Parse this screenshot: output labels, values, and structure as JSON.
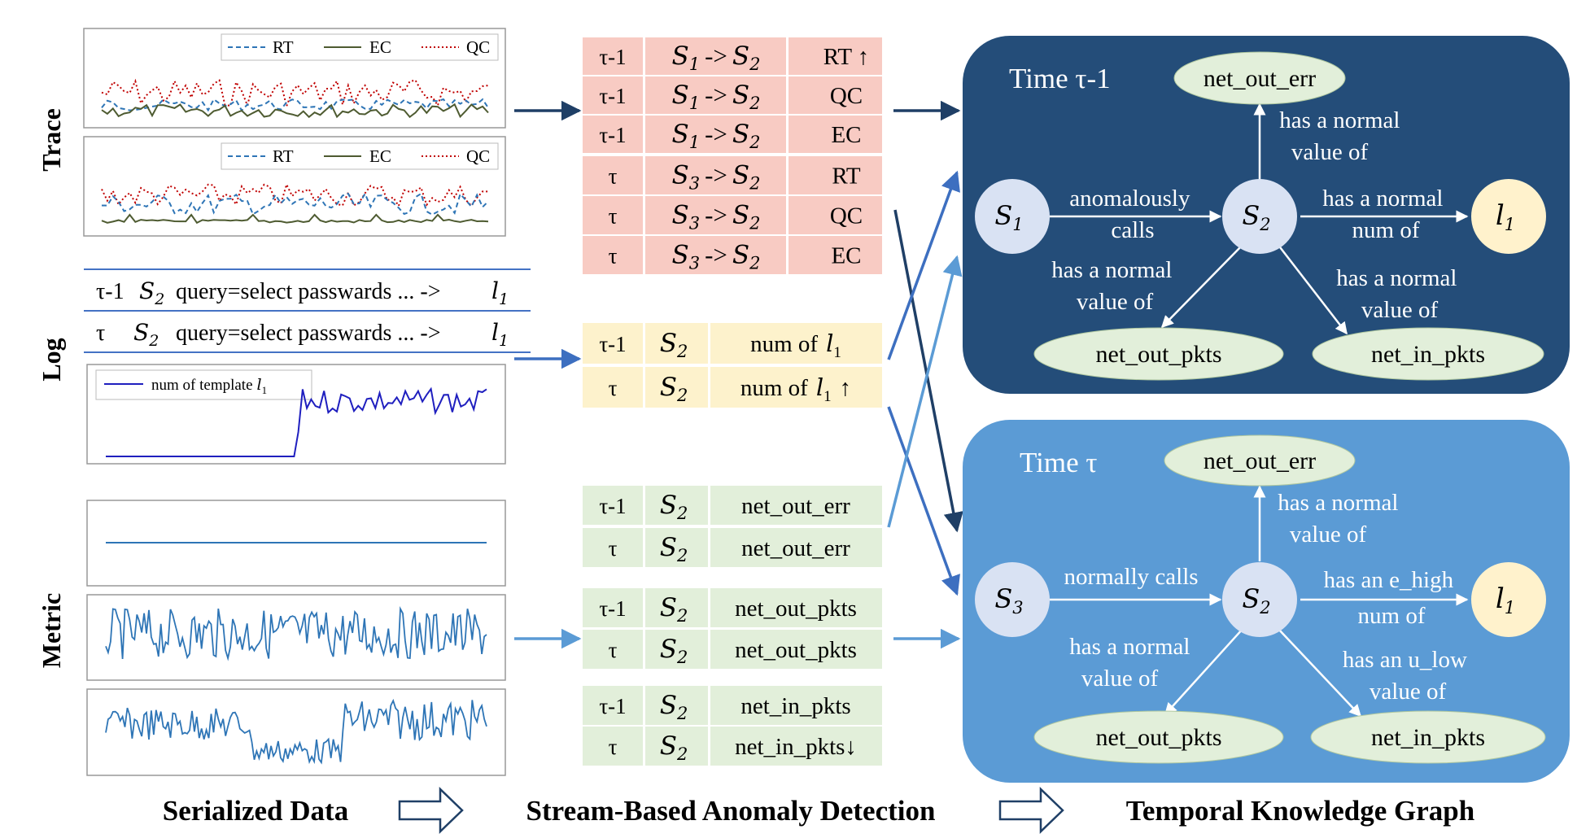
{
  "sections": {
    "trace": "Trace",
    "log": "Log",
    "metric": "Metric"
  },
  "legend": {
    "rt": "RT",
    "ec": "EC",
    "qc": "QC",
    "log_series": "num of template",
    "log_series_var": "l",
    "log_series_sub": "1"
  },
  "log_lines": [
    {
      "time": "τ-1",
      "svc": "S",
      "svc_sub": "2",
      "text": "query=select passwards ... ->",
      "tmpl": "l",
      "tmpl_sub": "1"
    },
    {
      "time": "τ",
      "svc": "S",
      "svc_sub": "2",
      "text": "query=select passwards ... ->",
      "tmpl": "l",
      "tmpl_sub": "1"
    }
  ],
  "trace_rows": [
    {
      "time": "τ-1",
      "from": "S",
      "from_sub": "1",
      "arrow": "->",
      "to": "S",
      "to_sub": "2",
      "metric": "RT ↑"
    },
    {
      "time": "τ-1",
      "from": "S",
      "from_sub": "1",
      "arrow": "->",
      "to": "S",
      "to_sub": "2",
      "metric": "QC"
    },
    {
      "time": "τ-1",
      "from": "S",
      "from_sub": "1",
      "arrow": "->",
      "to": "S",
      "to_sub": "2",
      "metric": "EC"
    },
    {
      "time": "τ",
      "from": "S",
      "from_sub": "3",
      "arrow": "->",
      "to": "S",
      "to_sub": "2",
      "metric": "RT"
    },
    {
      "time": "τ",
      "from": "S",
      "from_sub": "3",
      "arrow": "->",
      "to": "S",
      "to_sub": "2",
      "metric": "QC"
    },
    {
      "time": "τ",
      "from": "S",
      "from_sub": "3",
      "arrow": "->",
      "to": "S",
      "to_sub": "2",
      "metric": "EC"
    }
  ],
  "log_rows": [
    {
      "time": "τ-1",
      "svc": "S",
      "svc_sub": "2",
      "label": "num of",
      "var": "l",
      "var_sub": "1",
      "arrow": ""
    },
    {
      "time": "τ",
      "svc": "S",
      "svc_sub": "2",
      "label": "num of",
      "var": "l",
      "var_sub": "1",
      "arrow": "↑"
    }
  ],
  "metric_groups": [
    [
      {
        "time": "τ-1",
        "svc": "S",
        "svc_sub": "2",
        "metric": "net_out_err"
      },
      {
        "time": "τ",
        "svc": "S",
        "svc_sub": "2",
        "metric": "net_out_err"
      }
    ],
    [
      {
        "time": "τ-1",
        "svc": "S",
        "svc_sub": "2",
        "metric": "net_out_pkts"
      },
      {
        "time": "τ",
        "svc": "S",
        "svc_sub": "2",
        "metric": "net_out_pkts"
      }
    ],
    [
      {
        "time": "τ-1",
        "svc": "S",
        "svc_sub": "2",
        "metric": "net_in_pkts"
      },
      {
        "time": "τ",
        "svc": "S",
        "svc_sub": "2",
        "metric": "net_in_pkts↓"
      }
    ]
  ],
  "graph_top": {
    "title": "Time τ-1",
    "nodes": {
      "s_left": "S",
      "s_left_sub": "1",
      "s_center": "S",
      "s_center_sub": "2",
      "l": "l",
      "l_sub": "1",
      "top": "net_out_err",
      "bottom_left": "net_out_pkts",
      "bottom_right": "net_in_pkts"
    },
    "edges": {
      "left": [
        "anomalously",
        "calls"
      ],
      "up": [
        "has a normal",
        "value of"
      ],
      "right": [
        "has a normal",
        "num of"
      ],
      "down_left": [
        "has a normal",
        "value of"
      ],
      "down_right": [
        "has a normal",
        "value of"
      ]
    }
  },
  "graph_bottom": {
    "title": "Time τ",
    "nodes": {
      "s_left": "S",
      "s_left_sub": "3",
      "s_center": "S",
      "s_center_sub": "2",
      "l": "l",
      "l_sub": "1",
      "top": "net_out_err",
      "bottom_left": "net_out_pkts",
      "bottom_right": "net_in_pkts"
    },
    "edges": {
      "left": [
        "normally calls"
      ],
      "up": [
        "has a normal",
        "value of"
      ],
      "right": [
        "has an e_high",
        "num of"
      ],
      "down_left": [
        "has a normal",
        "value of"
      ],
      "down_right": [
        "has an u_low",
        "value of"
      ]
    }
  },
  "footer": {
    "serialized": "Serialized Data",
    "stream": "Stream-Based Anomaly Detection",
    "tkg": "Temporal Knowledge Graph"
  },
  "colors": {
    "trace_bg": "#f8cbc3",
    "log_bg": "#fdf2cc",
    "metric_bg": "#e2efda",
    "graph_top_bg": "#244d79",
    "graph_bottom_bg": "#5b9bd5",
    "node_service": "#d9e2f3",
    "node_template": "#fff2cc",
    "node_metric": "#e2efda",
    "rt_line": "#2e75b6",
    "ec_line": "#4e5b31",
    "qc_line": "#c00000",
    "log_line": "#1f1fbf",
    "metric_line": "#2e75b6"
  }
}
